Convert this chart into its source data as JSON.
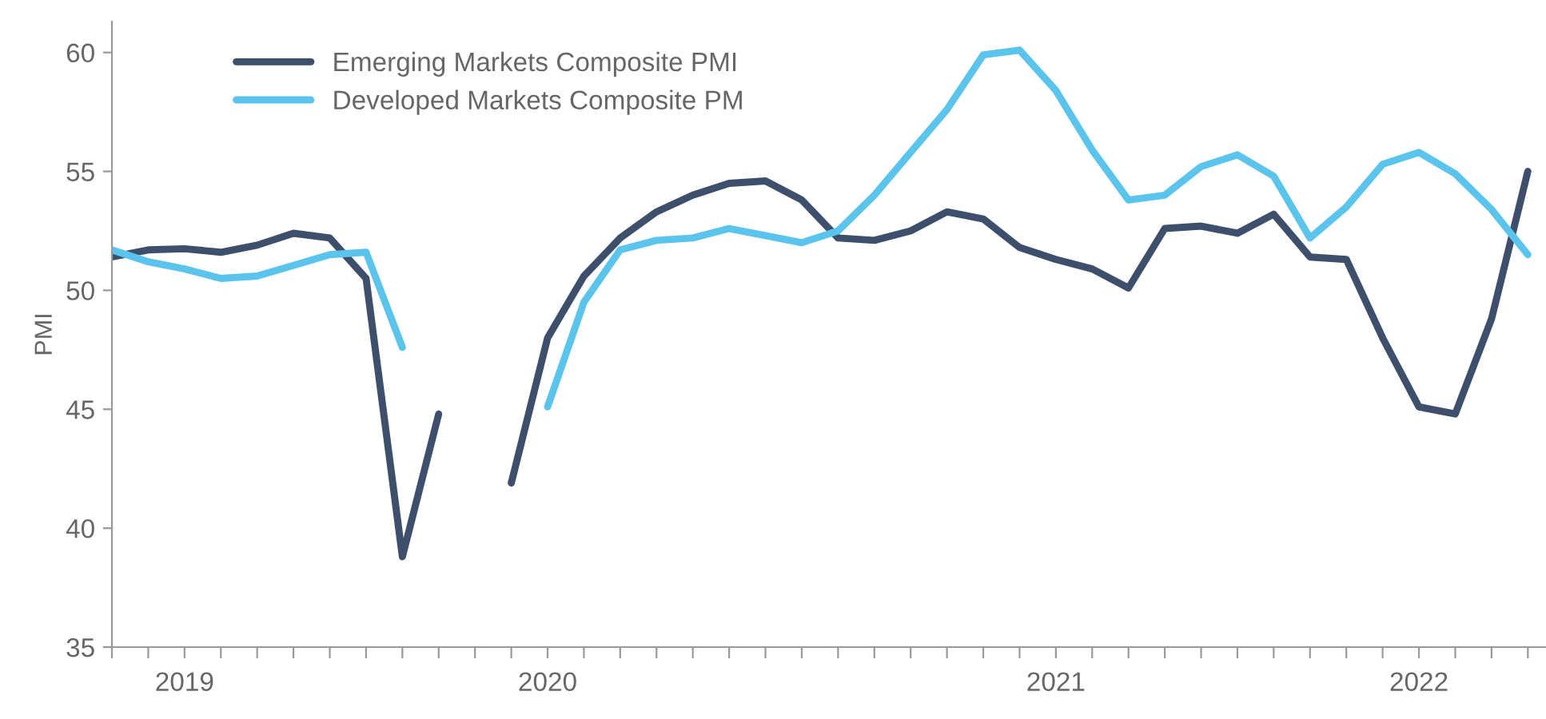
{
  "chart_data": {
    "type": "line",
    "ylabel": "PMI",
    "ylim": [
      35,
      61.3
    ],
    "yticks": [
      35,
      40,
      45,
      50,
      55,
      60
    ],
    "categories": [
      null,
      null,
      "2019",
      null,
      null,
      null,
      null,
      null,
      null,
      null,
      null,
      null,
      "2020",
      null,
      null,
      null,
      null,
      null,
      null,
      null,
      null,
      null,
      null,
      null,
      null,
      null,
      "2021",
      null,
      null,
      null,
      null,
      null,
      null,
      null,
      null,
      null,
      "2022",
      null,
      null,
      null
    ],
    "grid": false,
    "legend": "top left",
    "marker": "none",
    "line_style": "solid",
    "series": [
      {
        "name": "Emerging Markets Composite PMI",
        "color": "#3d4f6b",
        "values": [
          51.4,
          51.7,
          51.75,
          51.6,
          51.9,
          52.4,
          52.2,
          50.5,
          38.8,
          44.8,
          null,
          41.9,
          48.0,
          50.6,
          52.2,
          53.3,
          54.0,
          54.5,
          54.6,
          53.8,
          52.2,
          52.1,
          52.5,
          53.3,
          53.0,
          51.8,
          51.3,
          50.9,
          50.1,
          52.6,
          52.7,
          52.4,
          53.2,
          51.4,
          51.3,
          48.0,
          45.1,
          44.8,
          48.8,
          55.0
        ]
      },
      {
        "name": "Developed Markets Composite PM",
        "color": "#5bc4ec",
        "values": [
          51.7,
          51.2,
          50.9,
          50.5,
          50.6,
          51.05,
          51.5,
          51.6,
          47.6,
          null,
          null,
          null,
          45.1,
          49.5,
          51.7,
          52.1,
          52.2,
          52.6,
          52.3,
          52.0,
          52.5,
          54.0,
          55.8,
          57.6,
          59.9,
          60.1,
          58.4,
          55.9,
          53.8,
          54.0,
          55.2,
          55.7,
          54.8,
          52.2,
          53.5,
          55.3,
          55.8,
          54.9,
          53.4,
          51.5
        ]
      }
    ]
  }
}
